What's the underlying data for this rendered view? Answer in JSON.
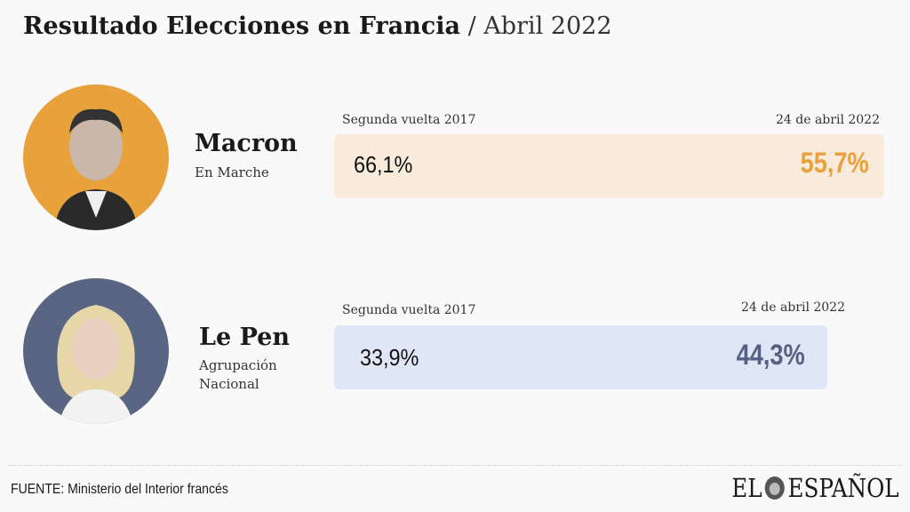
{
  "title": {
    "main": "Resultado Elecciones en Francia",
    "sub": "/ Abril 2022"
  },
  "chart_data": {
    "type": "table",
    "title": "Resultado Elecciones en Francia / Abril 2022",
    "columns": [
      "Segunda vuelta 2017",
      "24 de abril 2022"
    ],
    "rows": [
      {
        "name": "Macron",
        "party": "En Marche",
        "v2017": 66.1,
        "v2022": 55.7,
        "label_2017": "66,1%",
        "label_2022": "55,7%"
      },
      {
        "name": "Le Pen",
        "party": "Agrupación Nacional",
        "v2017": 33.9,
        "v2022": 44.3,
        "label_2017": "33,9%",
        "label_2022": "44,3%"
      }
    ],
    "colors": {
      "macron_bar": "#f8ebdc",
      "macron_value": "#e9a23b",
      "lepen_bar": "#dfe6f6",
      "lepen_value": "#566181"
    }
  },
  "labels": {
    "y2017": "Segunda vuelta 2017",
    "y2022": "24 de abril 2022"
  },
  "footer": {
    "source": "FUENTE:  Ministerio del Interior francés",
    "logo_left": "EL",
    "logo_right": "ESPAÑOL"
  }
}
